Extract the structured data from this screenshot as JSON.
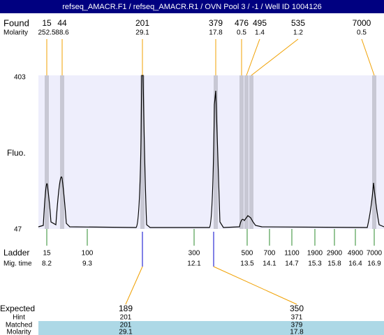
{
  "header": {
    "title": "refseq_AMACR.F1 / refseq_AMACR.R1 / OVN Pool 3 / -1 / Well ID 1004126"
  },
  "found": {
    "label": "Found",
    "molarity_label": "Molarity",
    "peaks": [
      {
        "size": 15,
        "molarity": 252.5
      },
      {
        "size": 44,
        "molarity": 88.6
      },
      {
        "size": 201,
        "molarity": 29.1
      },
      {
        "size": 379,
        "molarity": 17.8
      },
      {
        "size": 476,
        "molarity": 0.5
      },
      {
        "size": 495,
        "molarity": 1.4
      },
      {
        "size": 535,
        "molarity": 1.2
      },
      {
        "size": 7000,
        "molarity": 0.5
      }
    ]
  },
  "plot": {
    "y_label": "Fluo.",
    "y_top": 403,
    "y_bottom": 47
  },
  "ladder": {
    "label": "Ladder",
    "time_label": "Mig. time",
    "markers": [
      {
        "size": 15,
        "time": 8.2
      },
      {
        "size": 100,
        "time": 9.3
      },
      {
        "size": 300,
        "time": 12.1
      },
      {
        "size": 500,
        "time": 13.5
      },
      {
        "size": 700,
        "time": 14.1
      },
      {
        "size": 1100,
        "time": 14.7
      },
      {
        "size": 1900,
        "time": 15.3
      },
      {
        "size": 2900,
        "time": 15.8
      },
      {
        "size": 4900,
        "time": 16.4
      },
      {
        "size": 7000,
        "time": 16.9
      }
    ]
  },
  "expected": {
    "label": "Expected",
    "hint_label": "Hint",
    "matched_label": "Matched",
    "molarity_label": "Molarity",
    "columns": [
      {
        "expected": 189,
        "hint": 201,
        "matched": 201,
        "molarity": 29.1
      },
      {
        "expected": 350,
        "hint": 371,
        "matched": 379,
        "molarity": 17.8
      }
    ]
  }
}
